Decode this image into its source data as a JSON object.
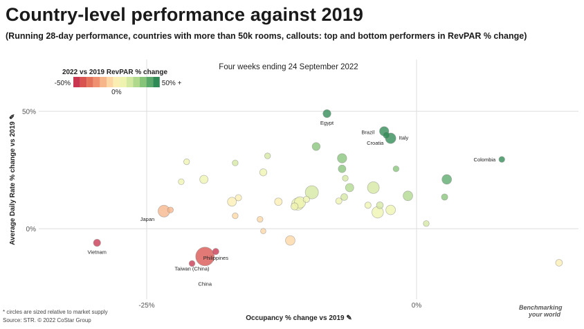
{
  "header": {
    "title": "Country-level performance against 2019",
    "subtitle": "(Running 28-day performance, countries with more than 50k rooms, callouts: top and bottom performers in RevPAR % change)"
  },
  "footnotes": {
    "size_note": "* circles are sized relative to market supply",
    "source": "Source: STR. © 2022 CoStar Group"
  },
  "brand": {
    "line1": "Benchmarking",
    "line2": "your world"
  },
  "chart_data": {
    "type": "scatter",
    "title": "Four weeks ending 24 September 2022",
    "xlabel": "Occupancy % change vs 2019 ✎",
    "ylabel": "Average Daily Rate % change vs 2019 ✎",
    "xlim": [
      -0.35,
      0.15
    ],
    "ylim": [
      -0.3,
      0.72
    ],
    "x_ticks": [
      {
        "value": -0.25,
        "label": "-25%"
      },
      {
        "value": 0,
        "label": "0%"
      }
    ],
    "y_ticks": [
      {
        "value": 0,
        "label": "0%"
      },
      {
        "value": 0.5,
        "label": "50%"
      }
    ],
    "grid": true,
    "legend": {
      "title": "2022 vs 2019 RevPAR % change",
      "min_label": "-50%",
      "max_label": "50% +",
      "mid_label": "0%",
      "colors": [
        "#c8364f",
        "#d9534f",
        "#e4735c",
        "#ef9070",
        "#f6b68a",
        "#fcd6a4",
        "#fbeeb2",
        "#eef3b0",
        "#d3e8a0",
        "#b0d98d",
        "#86c47a",
        "#5aa96a",
        "#2f8b55"
      ],
      "placement": "top-left"
    },
    "points": [
      {
        "label": "Egypt",
        "x": -0.083,
        "y": 0.49,
        "size": 1.1,
        "revpar": 0.62
      },
      {
        "label": "Brazil",
        "x": -0.03,
        "y": 0.415,
        "size": 1.5,
        "revpar": 0.57
      },
      {
        "label": "Croatia",
        "x": -0.028,
        "y": 0.398,
        "size": 0.7,
        "revpar": 0.66
      },
      {
        "label": "Italy",
        "x": -0.024,
        "y": 0.385,
        "size": 1.9,
        "revpar": 0.58
      },
      {
        "label": "Colombia",
        "x": 0.079,
        "y": 0.295,
        "size": 0.6,
        "revpar": 0.55
      },
      {
        "label": "Japan",
        "x": -0.234,
        "y": 0.075,
        "size": 2.4,
        "revpar": -0.2
      },
      {
        "label": "Vietnam",
        "x": -0.296,
        "y": -0.06,
        "size": 0.9,
        "revpar": -0.5
      },
      {
        "label": "Philippines",
        "x": -0.186,
        "y": -0.097,
        "size": 0.7,
        "revpar": -0.48
      },
      {
        "label": "China",
        "x": -0.196,
        "y": -0.118,
        "size": 6.0,
        "revpar": -0.42
      },
      {
        "label": "Taiwan (China)",
        "x": -0.208,
        "y": -0.148,
        "size": 0.6,
        "revpar": -0.55
      },
      {
        "label": "",
        "x": -0.093,
        "y": 0.35,
        "size": 1.1,
        "revpar": 0.35
      },
      {
        "label": "",
        "x": -0.069,
        "y": 0.3,
        "size": 1.5,
        "revpar": 0.3
      },
      {
        "label": "",
        "x": -0.069,
        "y": 0.255,
        "size": 1.0,
        "revpar": 0.3
      },
      {
        "label": "",
        "x": -0.066,
        "y": 0.215,
        "size": 0.6,
        "revpar": 0.2
      },
      {
        "label": "",
        "x": -0.062,
        "y": 0.175,
        "size": 1.2,
        "revpar": 0.22
      },
      {
        "label": "",
        "x": -0.067,
        "y": 0.135,
        "size": 0.8,
        "revpar": 0.15
      },
      {
        "label": "",
        "x": -0.072,
        "y": 0.118,
        "size": 0.7,
        "revpar": 0.1
      },
      {
        "label": "",
        "x": -0.097,
        "y": 0.155,
        "size": 3.0,
        "revpar": 0.15
      },
      {
        "label": "",
        "x": -0.102,
        "y": 0.125,
        "size": 0.7,
        "revpar": 0.08
      },
      {
        "label": "",
        "x": -0.11,
        "y": 0.105,
        "size": 2.6,
        "revpar": 0.1
      },
      {
        "label": "",
        "x": -0.108,
        "y": 0.112,
        "size": 2.2,
        "revpar": 0.1
      },
      {
        "label": "",
        "x": -0.113,
        "y": 0.095,
        "size": 0.9,
        "revpar": 0.05
      },
      {
        "label": "",
        "x": -0.128,
        "y": 0.115,
        "size": 1.0,
        "revpar": 0.03
      },
      {
        "label": "",
        "x": -0.171,
        "y": 0.115,
        "size": 1.4,
        "revpar": 0.02
      },
      {
        "label": "",
        "x": -0.165,
        "y": 0.132,
        "size": 0.7,
        "revpar": 0.0
      },
      {
        "label": "",
        "x": -0.168,
        "y": 0.055,
        "size": 0.6,
        "revpar": -0.05
      },
      {
        "label": "",
        "x": -0.145,
        "y": 0.04,
        "size": 0.6,
        "revpar": -0.08
      },
      {
        "label": "",
        "x": -0.142,
        "y": -0.01,
        "size": 0.5,
        "revpar": -0.12
      },
      {
        "label": "",
        "x": -0.117,
        "y": -0.05,
        "size": 1.6,
        "revpar": -0.1
      },
      {
        "label": "",
        "x": -0.142,
        "y": 0.24,
        "size": 0.9,
        "revpar": 0.12
      },
      {
        "label": "",
        "x": -0.138,
        "y": 0.31,
        "size": 0.6,
        "revpar": 0.18
      },
      {
        "label": "",
        "x": -0.168,
        "y": 0.28,
        "size": 0.6,
        "revpar": 0.15
      },
      {
        "label": "",
        "x": -0.197,
        "y": 0.21,
        "size": 1.2,
        "revpar": 0.08
      },
      {
        "label": "",
        "x": -0.218,
        "y": 0.2,
        "size": 0.6,
        "revpar": 0.05
      },
      {
        "label": "",
        "x": -0.213,
        "y": 0.285,
        "size": 0.6,
        "revpar": 0.08
      },
      {
        "label": "",
        "x": -0.228,
        "y": 0.08,
        "size": 0.6,
        "revpar": -0.15
      },
      {
        "label": "",
        "x": -0.04,
        "y": 0.175,
        "size": 2.4,
        "revpar": 0.2
      },
      {
        "label": "",
        "x": -0.034,
        "y": 0.1,
        "size": 0.8,
        "revpar": 0.15
      },
      {
        "label": "",
        "x": -0.045,
        "y": 0.1,
        "size": 0.7,
        "revpar": 0.12
      },
      {
        "label": "",
        "x": -0.036,
        "y": 0.07,
        "size": 2.3,
        "revpar": 0.1
      },
      {
        "label": "",
        "x": -0.024,
        "y": 0.08,
        "size": 1.6,
        "revpar": 0.12
      },
      {
        "label": "",
        "x": -0.019,
        "y": 0.255,
        "size": 0.6,
        "revpar": 0.3
      },
      {
        "label": "",
        "x": -0.008,
        "y": 0.14,
        "size": 1.6,
        "revpar": 0.25
      },
      {
        "label": "",
        "x": 0.028,
        "y": 0.21,
        "size": 1.6,
        "revpar": 0.42
      },
      {
        "label": "",
        "x": 0.026,
        "y": 0.135,
        "size": 0.7,
        "revpar": 0.35
      },
      {
        "label": "",
        "x": 0.009,
        "y": 0.022,
        "size": 0.6,
        "revpar": 0.18
      },
      {
        "label": "",
        "x": 0.132,
        "y": -0.145,
        "size": 0.8,
        "revpar": 0.02
      }
    ]
  }
}
